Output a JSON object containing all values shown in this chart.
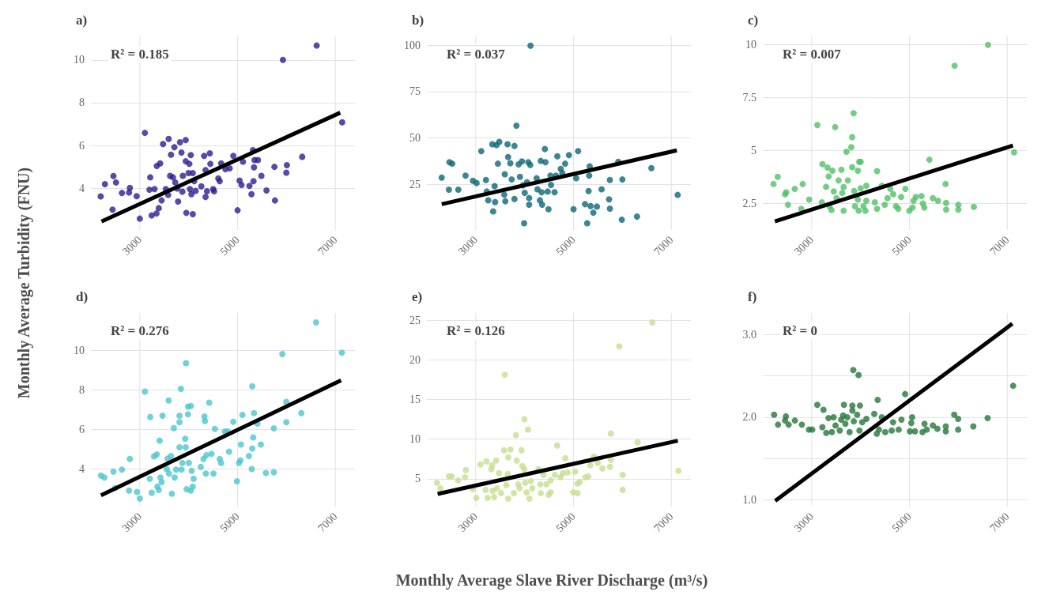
{
  "chart_data": [
    {
      "type": "scatter",
      "title": "a)",
      "xlabel": "Monthly Average Slave River Discharge (m³/s)",
      "ylabel": "Monthly Average Turbidity (FNU)",
      "annotations": [
        "R² = 0.185"
      ],
      "xlim": [
        2000,
        7400
      ],
      "ylim": [
        2.05,
        11.1
      ],
      "xticks": [
        3000,
        5000,
        7000
      ],
      "yticks": [
        4,
        6,
        8,
        10
      ],
      "grid": true,
      "marker": "circle",
      "line_style": "solid",
      "series": [
        {
          "color": "#2c1e8f",
          "x": [
            2200,
            2287,
            2443,
            2461,
            2513,
            2635,
            2797,
            2780,
            2936,
            3000,
            3104,
            3214,
            3197,
            3243,
            3301,
            3342,
            3348,
            3417,
            3388,
            3446,
            3475,
            3533,
            3580,
            3591,
            3620,
            3638,
            3678,
            3707,
            3725,
            3765,
            3783,
            3823,
            3852,
            3870,
            3881,
            3939,
            3939,
            3951,
            3997,
            4014,
            4026,
            4043,
            4055,
            4084,
            4084,
            4113,
            4142,
            4258,
            4316,
            4345,
            4345,
            4374,
            4432,
            4443,
            4501,
            4519,
            4606,
            4635,
            4664,
            4751,
            4838,
            4913,
            5000,
            5041,
            5081,
            5110,
            5243,
            5284,
            5313,
            5336,
            5325,
            5348,
            5417,
            5487,
            5591,
            5765,
            5754,
            5928,
            6009,
            5997,
            6322,
            6617,
            7139
          ],
          "values": [
            3.62,
            4.19,
            3.0,
            4.57,
            4.27,
            3.78,
            4.02,
            3.8,
            3.63,
            2.58,
            6.59,
            4.51,
            3.93,
            2.73,
            3.96,
            2.82,
            5.04,
            5.16,
            3.07,
            3.43,
            6.07,
            3.96,
            3.69,
            6.31,
            4.58,
            5.57,
            4.51,
            5.92,
            4.27,
            3.99,
            3.38,
            6.15,
            5.67,
            3.84,
            4.58,
            6.25,
            5.26,
            2.85,
            4.71,
            5.14,
            3.96,
            5.55,
            3.72,
            2.79,
            4.71,
            4.33,
            3.88,
            4.09,
            5.51,
            4.85,
            3.59,
            3.86,
            5.63,
            5.14,
            3.96,
            3.86,
            4.46,
            4.33,
            5.16,
            4.89,
            4.93,
            5.51,
            2.97,
            4.36,
            4.15,
            5.24,
            4.11,
            3.72,
            5.78,
            4.98,
            4.33,
            5.32,
            5.32,
            4.58,
            3.9,
            3.43,
            5.0,
            10.0,
            5.08,
            4.73,
            5.47,
            10.67,
            7.08
          ]
        },
        {
          "type": "line",
          "marker": "none",
          "color": "#000000",
          "x": [
            2217,
            7099
          ],
          "values": [
            2.45,
            7.53
          ]
        }
      ]
    },
    {
      "type": "scatter",
      "title": "b)",
      "annotations": [
        "R² = 0.037"
      ],
      "xlim": [
        2000,
        7400
      ],
      "ylim": [
        0.4,
        104.7
      ],
      "xticks": [
        3000,
        5000,
        7000
      ],
      "yticks": [
        25,
        50,
        75,
        100
      ],
      "grid": true,
      "marker": "circle",
      "line_style": "solid",
      "series": [
        {
          "color": "#0d6777",
          "x": [
            2304,
            2462,
            2519,
            2451,
            2644,
            2791,
            2943,
            3017,
            3113,
            3209,
            3226,
            3255,
            3339,
            3356,
            3385,
            3396,
            3424,
            3453,
            3481,
            3583,
            3594,
            3605,
            3650,
            3662,
            3707,
            3735,
            3792,
            3792,
            3832,
            3877,
            3905,
            3945,
            3990,
            3962,
            4002,
            4047,
            4075,
            4092,
            4092,
            4120,
            4115,
            4245,
            4262,
            4313,
            4330,
            4347,
            4358,
            4414,
            4426,
            4471,
            4488,
            4528,
            4539,
            4612,
            4641,
            4669,
            4737,
            4771,
            4828,
            4907,
            5000,
            5054,
            5093,
            5235,
            5280,
            5308,
            5320,
            5331,
            5348,
            5405,
            5478,
            5574,
            5727,
            5744,
            5744,
            5914,
            5987,
            5999,
            6298,
            6593,
            7130
          ],
          "values": [
            28.6,
            36.9,
            36.1,
            22.1,
            22.1,
            29.7,
            26.9,
            25.7,
            42.9,
            27.3,
            21.1,
            16.4,
            46.6,
            10.4,
            24.0,
            15.4,
            46.1,
            36.1,
            47.9,
            19.4,
            30.4,
            15.9,
            46.6,
            39.7,
            36.4,
            27.6,
            45.7,
            17.1,
            56.6,
            35.7,
            29.0,
            37.3,
            4.0,
            24.4,
            20.4,
            26.1,
            36.9,
            14.0,
            17.6,
            99.7,
            35.4,
            28.3,
            22.3,
            16.4,
            37.6,
            20.7,
            14.0,
            44.0,
            36.9,
            21.1,
            11.6,
            29.7,
            24.7,
            20.7,
            29.7,
            40.1,
            33.3,
            31.1,
            36.1,
            40.7,
            11.6,
            28.3,
            42.9,
            14.3,
            4.0,
            21.4,
            29.7,
            34.7,
            13.3,
            9.7,
            13.0,
            22.3,
            16.9,
            27.3,
            11.9,
            37.1,
            5.9,
            27.6,
            7.6,
            33.7,
            19.3
          ]
        },
        {
          "type": "line",
          "marker": "none",
          "color": "#000000",
          "x": [
            2304,
            7113
          ],
          "values": [
            14.3,
            43.3
          ]
        }
      ]
    },
    {
      "type": "scatter",
      "title": "c)",
      "annotations": [
        "R² = 0.007"
      ],
      "xlim": [
        2000,
        7400
      ],
      "ylim": [
        1.25,
        10.4
      ],
      "xticks": [
        3000,
        5000,
        7000
      ],
      "yticks": [
        2.5,
        5,
        7.5,
        10
      ],
      "grid": true,
      "marker": "circle",
      "line_style": "solid",
      "series": [
        {
          "color": "#50c166",
          "x": [
            2219,
            2305,
            2456,
            2479,
            2514,
            2653,
            2815,
            2786,
            2948,
            3116,
            3220,
            3208,
            3295,
            3324,
            3347,
            3365,
            3405,
            3423,
            3452,
            3480,
            3509,
            3550,
            3608,
            3625,
            3654,
            3654,
            3712,
            3741,
            3810,
            3828,
            3828,
            3857,
            3868,
            3886,
            3944,
            3944,
            3961,
            3973,
            4001,
            4001,
            4059,
            4100,
            4117,
            4117,
            4291,
            4337,
            4337,
            4436,
            4494,
            4551,
            4609,
            4667,
            4725,
            4771,
            4829,
            4916,
            4997,
            5061,
            5084,
            5130,
            5246,
            5275,
            5304,
            5408,
            5478,
            5582,
            5738,
            5750,
            5750,
            5923,
            5999,
            5999,
            6317,
            6606,
            7139
          ],
          "values": [
            3.42,
            3.76,
            2.94,
            3.03,
            2.44,
            3.19,
            3.42,
            2.25,
            2.69,
            6.21,
            4.36,
            2.56,
            3.29,
            4.2,
            3.78,
            2.37,
            2.19,
            4.05,
            3.07,
            6.11,
            2.75,
            3.59,
            4.1,
            3.0,
            3.28,
            2.16,
            4.95,
            3.59,
            5.16,
            5.64,
            4.22,
            6.77,
            3.09,
            2.37,
            2.69,
            4.05,
            2.16,
            4.47,
            4.47,
            3.22,
            2.37,
            2.16,
            3.34,
            2.63,
            2.56,
            4.03,
            2.25,
            3.34,
            2.44,
            2.75,
            3.19,
            2.94,
            2.37,
            2.25,
            2.81,
            3.19,
            2.16,
            2.31,
            2.63,
            2.81,
            2.85,
            2.5,
            2.31,
            4.57,
            2.75,
            2.63,
            3.42,
            2.53,
            2.21,
            9.01,
            2.44,
            2.21,
            2.34,
            10.0,
            4.92
          ]
        },
        {
          "type": "line",
          "marker": "none",
          "color": "#000000",
          "x": [
            2247,
            7116
          ],
          "values": [
            1.66,
            5.24
          ]
        }
      ]
    },
    {
      "type": "scatter",
      "title": "d)",
      "annotations": [
        "R² = 0.276"
      ],
      "xlim": [
        2000,
        7400
      ],
      "ylim": [
        2.1,
        11.9
      ],
      "xticks": [
        3000,
        5000,
        7000
      ],
      "yticks": [
        4,
        6,
        8,
        10
      ],
      "grid": true,
      "marker": "circle",
      "line_style": "solid",
      "series": [
        {
          "color": "#4cc6ce",
          "x": [
            2206,
            2275,
            2461,
            2496,
            2635,
            2797,
            2780,
            2942,
            3000,
            3104,
            3203,
            3214,
            3243,
            3290,
            3348,
            3359,
            3388,
            3406,
            3423,
            3446,
            3464,
            3551,
            3568,
            3591,
            3597,
            3638,
            3655,
            3696,
            3713,
            3742,
            3812,
            3812,
            3812,
            3841,
            3852,
            3870,
            3928,
            3939,
            3945,
            3957,
            3986,
            3986,
            4003,
            4043,
            4043,
            4061,
            4084,
            4101,
            4246,
            4304,
            4322,
            4333,
            4362,
            4351,
            4420,
            4467,
            4507,
            4536,
            4635,
            4664,
            4739,
            4797,
            4826,
            4913,
            4988,
            5029,
            5058,
            5070,
            5099,
            5232,
            5290,
            5301,
            5301,
            5319,
            5336,
            5406,
            5475,
            5580,
            5742,
            5742,
            5916,
            5997,
            5997,
            6304,
            6606,
            7133
          ],
          "values": [
            3.67,
            3.57,
            3.87,
            3.04,
            3.97,
            4.51,
            2.91,
            2.84,
            2.51,
            7.92,
            3.51,
            6.63,
            2.8,
            4.64,
            4.74,
            3.11,
            2.94,
            5.44,
            3.57,
            3.34,
            6.7,
            4.0,
            4.53,
            7.47,
            3.77,
            4.66,
            2.75,
            6.07,
            3.57,
            3.97,
            6.37,
            6.7,
            5.1,
            8.06,
            3.97,
            4.31,
            5.53,
            5.1,
            9.36,
            2.98,
            7.16,
            6.77,
            4.31,
            7.19,
            2.91,
            3.91,
            3.11,
            3.51,
            4.11,
            4.51,
            6.66,
            6.43,
            4.7,
            3.77,
            7.36,
            4.77,
            3.77,
            6.03,
            4.51,
            4.31,
            5.9,
            5.9,
            4.88,
            6.39,
            3.38,
            4.31,
            4.44,
            5.24,
            6.74,
            4.66,
            4.0,
            8.19,
            5.04,
            5.6,
            6.83,
            6.3,
            5.24,
            3.8,
            3.84,
            6.06,
            9.82,
            7.4,
            6.37,
            6.83,
            11.42,
            9.89
          ]
        },
        {
          "type": "line",
          "marker": "none",
          "color": "#000000",
          "x": [
            2206,
            7116
          ],
          "values": [
            2.67,
            8.49
          ]
        }
      ]
    },
    {
      "type": "scatter",
      "title": "e)",
      "annotations": [
        "R² = 0.126"
      ],
      "xlim": [
        2000,
        7400
      ],
      "ylim": [
        1.5,
        25.9
      ],
      "xticks": [
        3000,
        5000,
        7000
      ],
      "yticks": [
        5,
        10,
        15,
        20,
        25
      ],
      "grid": true,
      "marker": "circle",
      "line_style": "solid",
      "series": [
        {
          "color": "#c5df8e",
          "x": [
            2208,
            2277,
            2451,
            2509,
            2642,
            2798,
            2780,
            2942,
            3012,
            3098,
            3220,
            3202,
            3243,
            3318,
            3335,
            3347,
            3376,
            3416,
            3434,
            3474,
            3520,
            3578,
            3595,
            3624,
            3653,
            3665,
            3665,
            3711,
            3780,
            3821,
            3838,
            3867,
            3896,
            3936,
            3954,
            3994,
            3994,
            4012,
            4040,
            4069,
            4098,
            4127,
            4156,
            4283,
            4318,
            4329,
            4387,
            4445,
            4491,
            4532,
            4532,
            4618,
            4665,
            4734,
            4780,
            4832,
            4879,
            4994,
            5035,
            5081,
            5081,
            5127,
            5243,
            5301,
            5341,
            5416,
            5497,
            5590,
            5746,
            5763,
            5763,
            5936,
            6006,
            6006,
            6312,
            6613,
            7145
          ],
          "values": [
            4.5,
            3.8,
            5.3,
            5.3,
            4.8,
            6.1,
            5.2,
            3.7,
            2.6,
            6.8,
            7.2,
            3.6,
            2.6,
            6.2,
            6.7,
            3.5,
            2.7,
            7.3,
            3.8,
            5.7,
            3.2,
            8.6,
            18.1,
            4.2,
            5.6,
            7.7,
            2.5,
            8.7,
            3.2,
            10.5,
            7.3,
            4.3,
            3.8,
            8.6,
            6.6,
            12.5,
            6.2,
            4.5,
            3.3,
            11.2,
            2.5,
            4.7,
            3.8,
            6.2,
            4.3,
            3.2,
            5.5,
            4.3,
            3.0,
            4.8,
            3.3,
            5.5,
            9.2,
            5.2,
            5.7,
            7.6,
            5.8,
            3.3,
            5.9,
            3.2,
            4.4,
            4.6,
            5.2,
            5.3,
            6.7,
            7.8,
            7.0,
            6.3,
            6.5,
            7.4,
            10.7,
            21.7,
            5.5,
            3.6,
            9.6,
            24.7,
            6.0
          ]
        },
        {
          "type": "line",
          "marker": "none",
          "color": "#000000",
          "x": [
            2220,
            7133
          ],
          "values": [
            3.1,
            9.8
          ]
        }
      ]
    },
    {
      "type": "scatter",
      "title": "f)",
      "annotations": [
        "R² = 0"
      ],
      "xlim": [
        2000,
        7400
      ],
      "ylim": [
        0.92,
        3.26
      ],
      "xticks": [
        3000,
        5000,
        7000
      ],
      "yticks": [
        {
          "value": 1,
          "label": "1.0"
        },
        {
          "value": 1.5,
          "label": null
        },
        {
          "value": 2,
          "label": "2.0"
        },
        {
          "value": 2.5,
          "label": null
        },
        {
          "value": 3,
          "label": "3.0"
        }
      ],
      "grid": true,
      "marker": "circle",
      "line_style": "solid",
      "series": [
        {
          "color": "#26773a",
          "x": [
            2231,
            2311,
            2472,
            2455,
            2529,
            2656,
            2799,
            2943,
            3011,
            3115,
            3218,
            3241,
            3298,
            3344,
            3413,
            3448,
            3487,
            3574,
            3603,
            3643,
            3660,
            3689,
            3729,
            3775,
            3832,
            3832,
            3850,
            3861,
            3930,
            3958,
            3987,
            3976,
            4033,
            4119,
            4280,
            4331,
            4349,
            4377,
            4434,
            4504,
            4636,
            4664,
            4779,
            4836,
            4911,
            5009,
            5055,
            5037,
            5112,
            5267,
            5307,
            5353,
            5479,
            5571,
            5743,
            5743,
            5915,
            5996,
            5996,
            6306,
            6598,
            7120
          ],
          "values": [
            2.03,
            1.91,
            2.01,
            1.96,
            1.91,
            1.96,
            1.91,
            1.85,
            1.85,
            2.15,
            1.88,
            2.09,
            1.81,
            1.99,
            1.82,
            2.0,
            1.9,
            1.84,
            1.97,
            2.02,
            2.15,
            1.92,
            2.0,
            1.82,
            2.14,
            2.08,
            2.57,
            1.95,
            2.03,
            2.51,
            2.14,
            1.84,
            1.94,
            1.98,
            2.04,
            1.8,
            2.21,
            1.85,
            2.0,
            1.82,
            1.84,
            1.94,
            1.85,
            1.97,
            2.28,
            1.83,
            2.0,
            1.93,
            1.83,
            1.82,
            1.92,
            1.85,
            1.9,
            1.86,
            1.83,
            1.89,
            2.03,
            1.98,
            1.85,
            1.89,
            1.99,
            2.38
          ]
        },
        {
          "type": "line",
          "marker": "none",
          "color": "#000000",
          "x": [
            2254,
            7103
          ],
          "values": [
            0.99,
            3.13
          ]
        }
      ]
    }
  ]
}
